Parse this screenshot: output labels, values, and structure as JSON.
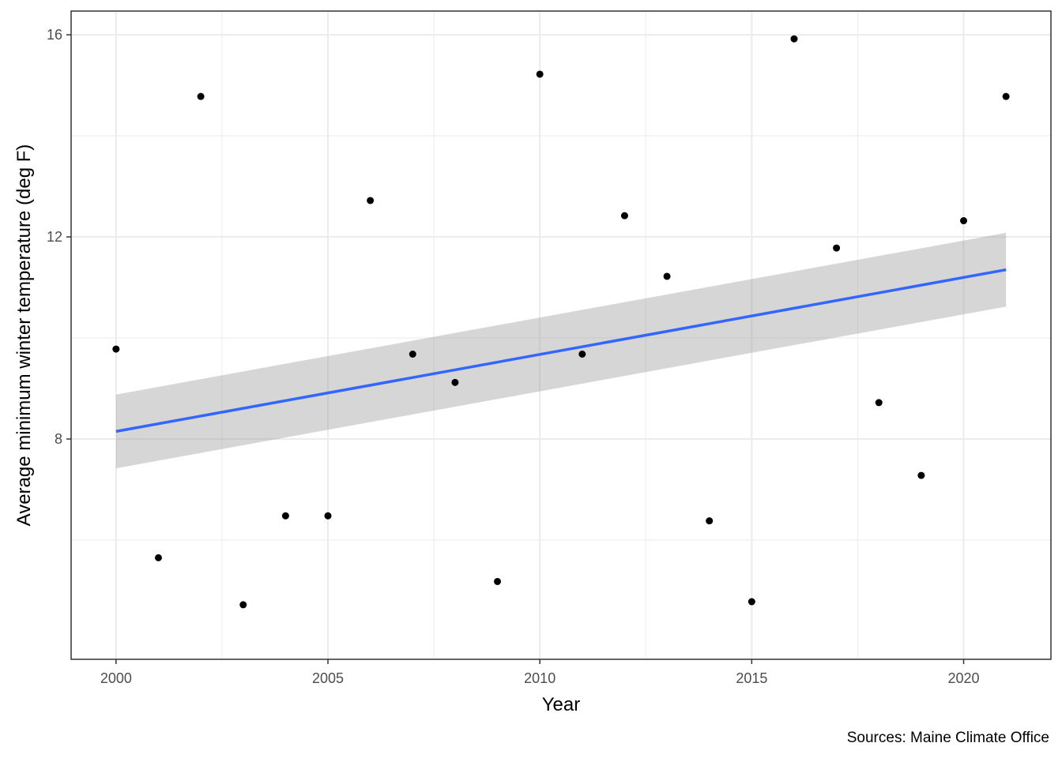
{
  "chart_data": {
    "type": "scatter",
    "title": "",
    "xlabel": "Year",
    "ylabel": "Average minimum winter temperature (deg F)",
    "caption": "Sources: Maine Climate Office",
    "xlim": [
      1998.94,
      2022.06
    ],
    "ylim": [
      3.64,
      16.47
    ],
    "x_ticks": [
      2000,
      2005,
      2010,
      2015,
      2020
    ],
    "y_ticks": [
      8,
      12,
      16
    ],
    "x_minor_ticks": [
      2002.5,
      2007.5,
      2012.5,
      2017.5
    ],
    "y_minor_ticks": [
      6,
      10,
      14
    ],
    "grid": true,
    "colors": {
      "points": "#000000",
      "trend_line": "#3366FF",
      "confidence_band": "#999999",
      "grid": "#ebebeb",
      "panel_border": "#333333"
    },
    "points": [
      {
        "x": 2000,
        "y": 9.78
      },
      {
        "x": 2001,
        "y": 5.65
      },
      {
        "x": 2002,
        "y": 14.78
      },
      {
        "x": 2003,
        "y": 4.72
      },
      {
        "x": 2004,
        "y": 6.48
      },
      {
        "x": 2005,
        "y": 6.48
      },
      {
        "x": 2006,
        "y": 12.72
      },
      {
        "x": 2007,
        "y": 9.68
      },
      {
        "x": 2008,
        "y": 9.12
      },
      {
        "x": 2009,
        "y": 5.18
      },
      {
        "x": 2010,
        "y": 15.22
      },
      {
        "x": 2011,
        "y": 9.68
      },
      {
        "x": 2012,
        "y": 12.42
      },
      {
        "x": 2013,
        "y": 11.22
      },
      {
        "x": 2014,
        "y": 6.38
      },
      {
        "x": 2015,
        "y": 4.78
      },
      {
        "x": 2016,
        "y": 15.92
      },
      {
        "x": 2017,
        "y": 11.78
      },
      {
        "x": 2018,
        "y": 8.72
      },
      {
        "x": 2019,
        "y": 7.28
      },
      {
        "x": 2020,
        "y": 12.32
      },
      {
        "x": 2021,
        "y": 14.78
      }
    ],
    "trend": {
      "method": "linear",
      "x": [
        2000,
        2021
      ],
      "fit": [
        8.15,
        11.35
      ],
      "lower": [
        7.42,
        10.62
      ],
      "upper": [
        8.88,
        12.08
      ]
    }
  }
}
